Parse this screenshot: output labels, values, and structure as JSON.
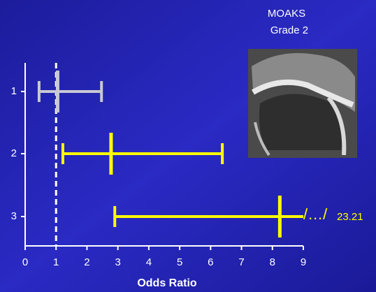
{
  "chart_data": {
    "type": "forest",
    "image_caption": [
      "MOAKS",
      "Grade 2"
    ],
    "x_label": "Odds Ratio",
    "categories": [
      "1",
      "2",
      "3"
    ],
    "estimates": [
      1.05,
      2.78,
      8.24
    ],
    "lower": [
      0.45,
      1.22,
      2.9
    ],
    "upper": [
      2.47,
      6.38,
      23.21
    ],
    "colors": [
      "#c8c8d4",
      "#ffff00",
      "#ffff00"
    ],
    "reference": 1,
    "break_label": "/…/",
    "xlim": [
      0,
      9
    ],
    "xticks": [
      0,
      1,
      2,
      3,
      4,
      5,
      6,
      7,
      8,
      9
    ]
  }
}
